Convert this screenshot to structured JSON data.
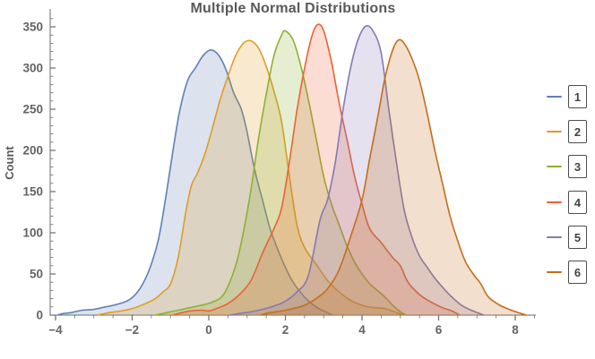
{
  "chart_data": {
    "type": "area",
    "subtype": "smooth-histogram-kde",
    "title": "Multiple Normal Distributions",
    "xlabel": "",
    "ylabel": "Count",
    "xlim": [
      -4.15,
      8.55
    ],
    "ylim": [
      0,
      370
    ],
    "grid": false,
    "legend_position": "right-outside",
    "x_ticks_major": [
      -4,
      -2,
      0,
      2,
      4,
      6,
      8
    ],
    "x_tick_labels": [
      "−4",
      "−2",
      "0",
      "2",
      "4",
      "6",
      "8"
    ],
    "x_minor_step": 0.5,
    "y_ticks_major": [
      0,
      50,
      100,
      150,
      200,
      250,
      300,
      350
    ],
    "y_tick_labels": [
      "0",
      "50",
      "100",
      "150",
      "200",
      "250",
      "300",
      "350"
    ],
    "y_minor_step": 10,
    "style": {
      "background": "#ffffff",
      "title_color": "#595959",
      "axis_color": "#6b6b6b",
      "tick_label_color": "#636363",
      "legend_border_color": "#4d4d4d",
      "legend_text_color": "#41434a",
      "fill_opacity": 0.22
    },
    "series": [
      {
        "name": "1",
        "legend_label": "1",
        "color": "#5e81b5",
        "peak_x": 0.05,
        "peak_count": 322,
        "points": [
          [
            -3.95,
            0
          ],
          [
            -3.8,
            2
          ],
          [
            -3.6,
            3
          ],
          [
            -3.3,
            6
          ],
          [
            -3.0,
            7
          ],
          [
            -2.7,
            10
          ],
          [
            -2.4,
            13
          ],
          [
            -2.1,
            18
          ],
          [
            -1.9,
            26
          ],
          [
            -1.7,
            40
          ],
          [
            -1.5,
            62
          ],
          [
            -1.3,
            95
          ],
          [
            -1.1,
            150
          ],
          [
            -0.9,
            210
          ],
          [
            -0.75,
            250
          ],
          [
            -0.55,
            285
          ],
          [
            -0.35,
            300
          ],
          [
            -0.15,
            315
          ],
          [
            0.05,
            322
          ],
          [
            0.25,
            316
          ],
          [
            0.45,
            298
          ],
          [
            0.65,
            270
          ],
          [
            0.85,
            250
          ],
          [
            1.0,
            222
          ],
          [
            1.2,
            176
          ],
          [
            1.4,
            140
          ],
          [
            1.6,
            105
          ],
          [
            1.8,
            80
          ],
          [
            2.0,
            58
          ],
          [
            2.2,
            40
          ],
          [
            2.5,
            22
          ],
          [
            2.8,
            10
          ],
          [
            3.05,
            4
          ],
          [
            3.25,
            0
          ]
        ]
      },
      {
        "name": "2",
        "legend_label": "2",
        "color": "#e19c24",
        "peak_x": 1.1,
        "peak_count": 333,
        "points": [
          [
            -2.9,
            0
          ],
          [
            -2.6,
            3
          ],
          [
            -2.3,
            5
          ],
          [
            -2.0,
            8
          ],
          [
            -1.7,
            13
          ],
          [
            -1.4,
            20
          ],
          [
            -1.2,
            28
          ],
          [
            -1.0,
            38
          ],
          [
            -0.8,
            70
          ],
          [
            -0.6,
            125
          ],
          [
            -0.45,
            158
          ],
          [
            -0.3,
            172
          ],
          [
            -0.1,
            196
          ],
          [
            0.1,
            228
          ],
          [
            0.3,
            262
          ],
          [
            0.5,
            290
          ],
          [
            0.7,
            315
          ],
          [
            0.9,
            330
          ],
          [
            1.1,
            333
          ],
          [
            1.3,
            324
          ],
          [
            1.5,
            302
          ],
          [
            1.7,
            272
          ],
          [
            1.9,
            235
          ],
          [
            2.1,
            170
          ],
          [
            2.3,
            110
          ],
          [
            2.5,
            82
          ],
          [
            2.8,
            62
          ],
          [
            3.1,
            42
          ],
          [
            3.4,
            28
          ],
          [
            3.7,
            18
          ],
          [
            4.0,
            12
          ],
          [
            4.3,
            9
          ],
          [
            4.6,
            8
          ],
          [
            4.9,
            3
          ],
          [
            5.1,
            0
          ]
        ]
      },
      {
        "name": "3",
        "legend_label": "3",
        "color": "#8fb032",
        "peak_x": 2.0,
        "peak_count": 345,
        "points": [
          [
            -1.4,
            0
          ],
          [
            -1.1,
            3
          ],
          [
            -0.8,
            6
          ],
          [
            -0.5,
            9
          ],
          [
            -0.2,
            12
          ],
          [
            0.1,
            16
          ],
          [
            0.4,
            26
          ],
          [
            0.7,
            60
          ],
          [
            0.9,
            100
          ],
          [
            1.1,
            152
          ],
          [
            1.3,
            215
          ],
          [
            1.5,
            268
          ],
          [
            1.7,
            315
          ],
          [
            1.9,
            340
          ],
          [
            2.0,
            345
          ],
          [
            2.2,
            334
          ],
          [
            2.4,
            303
          ],
          [
            2.6,
            262
          ],
          [
            2.8,
            215
          ],
          [
            3.0,
            168
          ],
          [
            3.2,
            135
          ],
          [
            3.4,
            110
          ],
          [
            3.6,
            85
          ],
          [
            3.8,
            65
          ],
          [
            4.0,
            50
          ],
          [
            4.2,
            38
          ],
          [
            4.4,
            30
          ],
          [
            4.6,
            22
          ],
          [
            4.8,
            12
          ],
          [
            5.0,
            4
          ],
          [
            5.15,
            0
          ]
        ]
      },
      {
        "name": "4",
        "legend_label": "4",
        "color": "#eb6235",
        "peak_x": 2.85,
        "peak_count": 353,
        "points": [
          [
            -0.95,
            0
          ],
          [
            -0.7,
            3
          ],
          [
            -0.5,
            5
          ],
          [
            -0.2,
            6
          ],
          [
            0.0,
            5
          ],
          [
            0.2,
            8
          ],
          [
            0.5,
            14
          ],
          [
            0.8,
            25
          ],
          [
            1.1,
            42
          ],
          [
            1.4,
            75
          ],
          [
            1.7,
            105
          ],
          [
            1.9,
            130
          ],
          [
            2.1,
            185
          ],
          [
            2.3,
            248
          ],
          [
            2.5,
            300
          ],
          [
            2.7,
            340
          ],
          [
            2.85,
            353
          ],
          [
            3.0,
            345
          ],
          [
            3.2,
            308
          ],
          [
            3.4,
            258
          ],
          [
            3.6,
            215
          ],
          [
            3.8,
            170
          ],
          [
            4.0,
            135
          ],
          [
            4.2,
            105
          ],
          [
            4.5,
            88
          ],
          [
            4.8,
            70
          ],
          [
            5.0,
            60
          ],
          [
            5.2,
            40
          ],
          [
            5.5,
            25
          ],
          [
            5.8,
            16
          ],
          [
            6.1,
            9
          ],
          [
            6.35,
            5
          ],
          [
            6.55,
            0
          ]
        ]
      },
      {
        "name": "5",
        "legend_label": "5",
        "color": "#8778b3",
        "peak_x": 4.1,
        "peak_count": 351,
        "points": [
          [
            0.55,
            0
          ],
          [
            0.8,
            2
          ],
          [
            1.1,
            4
          ],
          [
            1.4,
            7
          ],
          [
            1.7,
            11
          ],
          [
            2.0,
            17
          ],
          [
            2.3,
            28
          ],
          [
            2.6,
            48
          ],
          [
            2.9,
            115
          ],
          [
            3.1,
            140
          ],
          [
            3.3,
            185
          ],
          [
            3.5,
            248
          ],
          [
            3.7,
            300
          ],
          [
            3.9,
            335
          ],
          [
            4.1,
            351
          ],
          [
            4.3,
            344
          ],
          [
            4.5,
            318
          ],
          [
            4.7,
            250
          ],
          [
            4.9,
            185
          ],
          [
            5.1,
            128
          ],
          [
            5.3,
            95
          ],
          [
            5.5,
            72
          ],
          [
            5.7,
            58
          ],
          [
            5.9,
            45
          ],
          [
            6.1,
            34
          ],
          [
            6.3,
            24
          ],
          [
            6.6,
            12
          ],
          [
            6.9,
            5
          ],
          [
            7.18,
            0
          ]
        ]
      },
      {
        "name": "6",
        "legend_label": "6",
        "color": "#c56e1a",
        "peak_x": 4.95,
        "peak_count": 334,
        "points": [
          [
            1.35,
            0
          ],
          [
            1.6,
            3
          ],
          [
            1.9,
            5
          ],
          [
            2.2,
            8
          ],
          [
            2.5,
            12
          ],
          [
            2.8,
            20
          ],
          [
            3.1,
            32
          ],
          [
            3.4,
            55
          ],
          [
            3.7,
            95
          ],
          [
            4.0,
            140
          ],
          [
            4.2,
            190
          ],
          [
            4.4,
            238
          ],
          [
            4.6,
            288
          ],
          [
            4.8,
            322
          ],
          [
            4.95,
            334
          ],
          [
            5.1,
            330
          ],
          [
            5.3,
            312
          ],
          [
            5.5,
            285
          ],
          [
            5.7,
            245
          ],
          [
            5.9,
            200
          ],
          [
            6.1,
            160
          ],
          [
            6.3,
            120
          ],
          [
            6.5,
            90
          ],
          [
            6.7,
            65
          ],
          [
            6.9,
            50
          ],
          [
            7.1,
            38
          ],
          [
            7.3,
            22
          ],
          [
            7.6,
            12
          ],
          [
            7.9,
            6
          ],
          [
            8.15,
            2
          ],
          [
            8.3,
            0
          ]
        ]
      }
    ]
  }
}
